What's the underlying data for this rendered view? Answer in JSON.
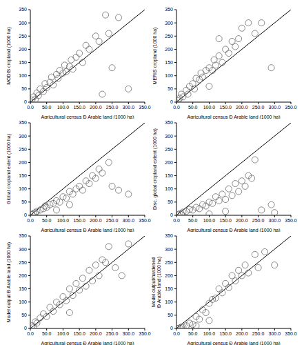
{
  "chart_data": [
    {
      "type": "scatter",
      "x_label": "Agricultural census Ð Arable land (1000 ha)",
      "y_label": "MODIS cropland (1000 ha)",
      "color": "#555555",
      "marker": "circle",
      "x": [
        5,
        10,
        15,
        20,
        25,
        30,
        40,
        45,
        50,
        60,
        65,
        70,
        80,
        85,
        90,
        100,
        105,
        110,
        120,
        125,
        130,
        140,
        150,
        160,
        170,
        180,
        200,
        210,
        230,
        250,
        270,
        300,
        220,
        240
      ],
      "values": [
        8,
        20,
        10,
        35,
        25,
        50,
        40,
        70,
        55,
        75,
        95,
        65,
        105,
        90,
        120,
        110,
        140,
        115,
        135,
        160,
        125,
        170,
        185,
        150,
        215,
        200,
        250,
        230,
        330,
        130,
        320,
        50,
        30,
        260
      ],
      "xlim": [
        0,
        350
      ],
      "ylim": [
        0,
        350
      ],
      "xticks": [
        {
          "value": 0,
          "label": "0.0"
        },
        {
          "value": 50,
          "label": "50.0"
        },
        {
          "value": 100,
          "label": "100.0"
        },
        {
          "value": 150,
          "label": "150.0"
        },
        {
          "value": 200,
          "label": "200.0"
        },
        {
          "value": 250,
          "label": "250.0"
        },
        {
          "value": 300,
          "label": "300.0"
        },
        {
          "value": 350,
          "label": "350.0"
        }
      ],
      "yticks": [
        0,
        50,
        100,
        150,
        200,
        250,
        300,
        350
      ],
      "reference_line": {
        "x": [
          0,
          350
        ],
        "y": [
          0,
          350
        ],
        "color": "#000000"
      }
    },
    {
      "type": "scatter",
      "x_label": "Agricultural census Ð Arable land (1000 ha)",
      "y_label": "MERIS cropland (1000 ha)",
      "color": "#555555",
      "marker": "circle",
      "x": [
        5,
        10,
        15,
        20,
        30,
        35,
        40,
        50,
        55,
        60,
        70,
        75,
        80,
        90,
        100,
        110,
        115,
        120,
        130,
        140,
        150,
        160,
        170,
        180,
        190,
        200,
        220,
        240,
        260,
        290,
        130,
        100
      ],
      "values": [
        5,
        15,
        30,
        20,
        45,
        30,
        60,
        70,
        50,
        90,
        85,
        110,
        95,
        120,
        130,
        120,
        160,
        140,
        175,
        150,
        200,
        185,
        230,
        210,
        240,
        280,
        300,
        260,
        300,
        130,
        240,
        60
      ],
      "xlim": [
        0,
        350
      ],
      "ylim": [
        0,
        350
      ],
      "xticks": [
        {
          "value": 0,
          "label": "0.0"
        },
        {
          "value": 50,
          "label": "50.0"
        },
        {
          "value": 100,
          "label": "100.0"
        },
        {
          "value": 150,
          "label": "150.0"
        },
        {
          "value": 200,
          "label": "200.0"
        },
        {
          "value": 250,
          "label": "250.0"
        },
        {
          "value": 300,
          "label": "300.0"
        },
        {
          "value": 350,
          "label": "350.0"
        }
      ],
      "yticks": [
        0,
        50,
        100,
        150,
        200,
        250,
        300,
        350
      ],
      "reference_line": {
        "x": [
          0,
          350
        ],
        "y": [
          0,
          350
        ],
        "color": "#000000"
      }
    },
    {
      "type": "scatter",
      "x_label": "Agricultural census Ð Arable land (1000 ha)",
      "y_label": "Global cropland extent (1000 ha)",
      "color": "#555555",
      "marker": "circle",
      "x": [
        5,
        10,
        15,
        20,
        30,
        40,
        45,
        50,
        60,
        70,
        80,
        90,
        100,
        110,
        120,
        130,
        140,
        150,
        160,
        170,
        180,
        190,
        200,
        210,
        220,
        240,
        250,
        270,
        300,
        120,
        80
      ],
      "values": [
        3,
        8,
        10,
        15,
        20,
        25,
        35,
        30,
        40,
        45,
        55,
        50,
        70,
        65,
        90,
        80,
        100,
        110,
        95,
        130,
        120,
        150,
        140,
        175,
        160,
        200,
        110,
        95,
        80,
        40,
        20
      ],
      "xlim": [
        0,
        350
      ],
      "ylim": [
        0,
        350
      ],
      "xticks": [
        {
          "value": 0,
          "label": "0.0"
        },
        {
          "value": 50,
          "label": "50.0"
        },
        {
          "value": 100,
          "label": "100.0"
        },
        {
          "value": 150,
          "label": "150.0"
        },
        {
          "value": 200,
          "label": "200.0"
        },
        {
          "value": 250,
          "label": "250.0"
        },
        {
          "value": 300,
          "label": "300.0"
        },
        {
          "value": 350,
          "label": "350.0"
        }
      ],
      "yticks": [
        0,
        50,
        100,
        150,
        200,
        250,
        300,
        350
      ],
      "reference_line": {
        "x": [
          0,
          350
        ],
        "y": [
          0,
          350
        ],
        "color": "#000000"
      }
    },
    {
      "type": "scatter",
      "x_label": "Agricultural census Ð Arable land (1000 ha)",
      "y_label": "Disc. global cropland extent (1000 ha)",
      "color": "#555555",
      "marker": "circle",
      "x": [
        5,
        10,
        15,
        20,
        30,
        40,
        50,
        60,
        70,
        80,
        90,
        100,
        110,
        120,
        130,
        140,
        150,
        160,
        170,
        180,
        190,
        200,
        210,
        220,
        230,
        240,
        260,
        290,
        300,
        150,
        100
      ],
      "values": [
        2,
        6,
        5,
        12,
        15,
        22,
        20,
        30,
        25,
        40,
        35,
        50,
        45,
        70,
        55,
        80,
        60,
        100,
        75,
        120,
        90,
        130,
        110,
        150,
        140,
        210,
        20,
        40,
        10,
        15,
        5
      ],
      "xlim": [
        0,
        350
      ],
      "ylim": [
        0,
        350
      ],
      "xticks": [
        {
          "value": 0,
          "label": "0.0"
        },
        {
          "value": 50,
          "label": "50.0"
        },
        {
          "value": 100,
          "label": "100.0"
        },
        {
          "value": 150,
          "label": "150.0"
        },
        {
          "value": 200,
          "label": "200.0"
        },
        {
          "value": 250,
          "label": "250.0"
        },
        {
          "value": 300,
          "label": "300.0"
        },
        {
          "value": 350,
          "label": "350.0"
        }
      ],
      "yticks": [
        0,
        50,
        100,
        150,
        200,
        250,
        300,
        350
      ],
      "reference_line": {
        "x": [
          0,
          350
        ],
        "y": [
          0,
          350
        ],
        "color": "#000000"
      }
    },
    {
      "type": "scatter",
      "x_label": "Agricultural census Ð Arable land (1000 ha)",
      "y_label": "Model output  Ð Arable land (1000 ha)",
      "color": "#555555",
      "marker": "circle",
      "x": [
        5,
        10,
        15,
        20,
        30,
        40,
        50,
        60,
        70,
        80,
        90,
        100,
        110,
        120,
        130,
        140,
        150,
        160,
        170,
        180,
        190,
        200,
        210,
        220,
        230,
        240,
        260,
        280,
        300,
        120
      ],
      "values": [
        10,
        5,
        25,
        20,
        40,
        55,
        45,
        80,
        65,
        100,
        90,
        120,
        105,
        150,
        125,
        170,
        145,
        190,
        160,
        220,
        180,
        240,
        200,
        260,
        250,
        310,
        230,
        200,
        320,
        60
      ],
      "xlim": [
        0,
        350
      ],
      "ylim": [
        0,
        350
      ],
      "xticks": [
        {
          "value": 0,
          "label": "0.0"
        },
        {
          "value": 50,
          "label": "50.0"
        },
        {
          "value": 100,
          "label": "100.0"
        },
        {
          "value": 150,
          "label": "150.0"
        },
        {
          "value": 200,
          "label": "200.0"
        },
        {
          "value": 250,
          "label": "250.0"
        },
        {
          "value": 300,
          "label": "300.0"
        },
        {
          "value": 350,
          "label": "350.0"
        }
      ],
      "yticks": [
        0,
        50,
        100,
        150,
        200,
        250,
        300,
        350
      ],
      "reference_line": {
        "x": [
          0,
          350
        ],
        "y": [
          0,
          350
        ],
        "color": "#000000"
      }
    },
    {
      "type": "scatter",
      "x_label": "Agricultural census Ð Arable land (1000 ha)",
      "y_label": "Model output/hardened Ð Arable land (1000 ha)",
      "color": "#555555",
      "marker": "circle",
      "x": [
        5,
        10,
        15,
        20,
        30,
        40,
        50,
        60,
        70,
        80,
        90,
        100,
        110,
        120,
        130,
        140,
        150,
        160,
        170,
        180,
        190,
        200,
        210,
        220,
        240,
        250,
        270,
        300,
        60,
        100
      ],
      "values": [
        0,
        2,
        5,
        5,
        10,
        20,
        15,
        45,
        35,
        70,
        60,
        95,
        110,
        115,
        150,
        135,
        170,
        155,
        200,
        180,
        220,
        200,
        240,
        210,
        280,
        230,
        290,
        240,
        10,
        30
      ],
      "xlim": [
        0,
        350
      ],
      "ylim": [
        0,
        350
      ],
      "xticks": [
        {
          "value": 0,
          "label": "0.0"
        },
        {
          "value": 50,
          "label": "50.0"
        },
        {
          "value": 100,
          "label": "100.0"
        },
        {
          "value": 150,
          "label": "150.0"
        },
        {
          "value": 200,
          "label": "200.0"
        },
        {
          "value": 250,
          "label": "250.0"
        },
        {
          "value": 300,
          "label": "300.0"
        },
        {
          "value": 350,
          "label": "350.0"
        }
      ],
      "yticks": [
        0,
        50,
        100,
        150,
        200,
        250,
        300,
        350
      ],
      "reference_line": {
        "x": [
          0,
          350
        ],
        "y": [
          0,
          350
        ],
        "color": "#000000"
      }
    }
  ]
}
